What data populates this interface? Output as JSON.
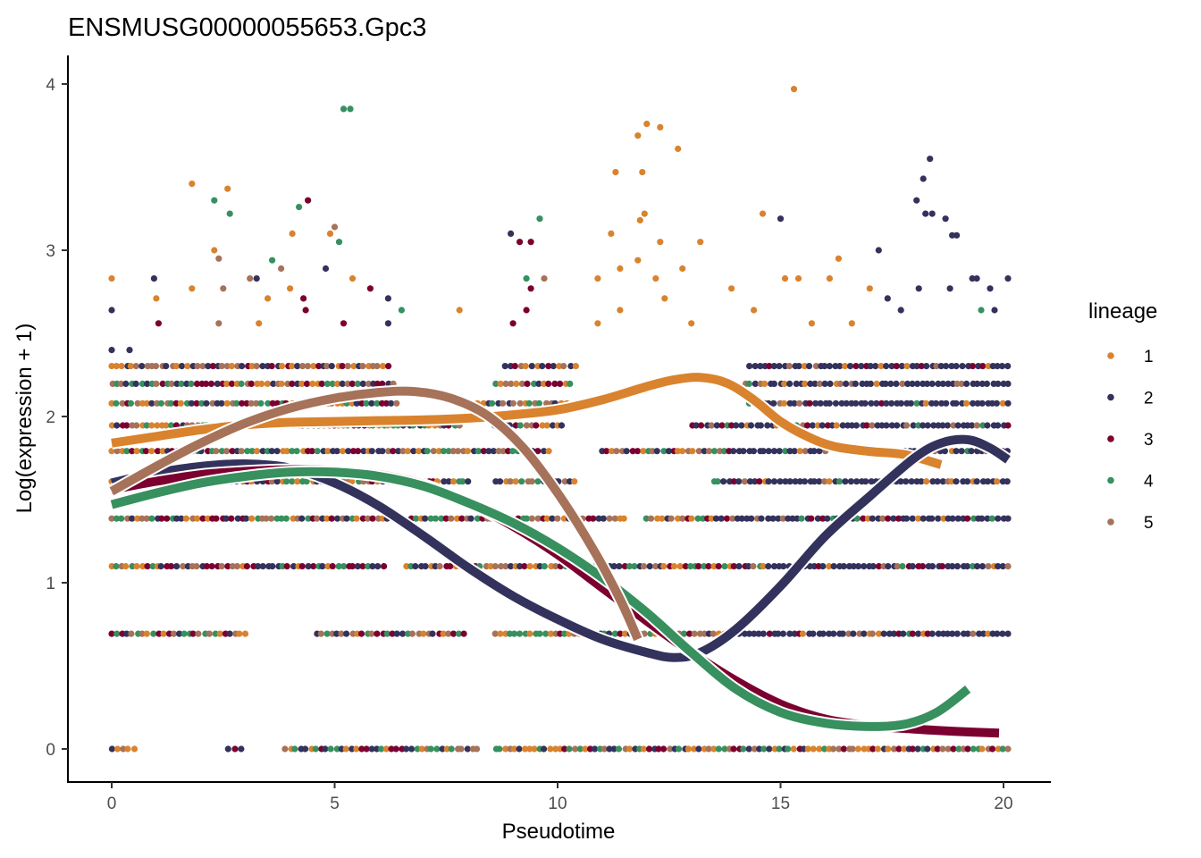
{
  "chart_data": {
    "type": "scatter",
    "title": "ENSMUSG00000055653.Gpc3",
    "xlabel": "Pseudotime",
    "ylabel": "Log(expression + 1)",
    "xlim": [
      -1.95,
      21.05
    ],
    "ylim": [
      -0.2,
      4.17
    ],
    "xticks": [
      0,
      5,
      10,
      15,
      20
    ],
    "yticks": [
      0,
      1,
      2,
      3,
      4
    ],
    "grid": false,
    "legend": {
      "title": "lineage",
      "position": "right",
      "entries": [
        {
          "label": "1",
          "color": "#D9832E"
        },
        {
          "label": "2",
          "color": "#33325C"
        },
        {
          "label": "3",
          "color": "#7B0030"
        },
        {
          "label": "4",
          "color": "#37905E"
        },
        {
          "label": "5",
          "color": "#A6725A"
        }
      ]
    },
    "series": [
      {
        "name": "1",
        "color": "#D9832E",
        "curve": [
          [
            0,
            1.84
          ],
          [
            1,
            1.88
          ],
          [
            2,
            1.92
          ],
          [
            3,
            1.95
          ],
          [
            4,
            1.965
          ],
          [
            5,
            1.97
          ],
          [
            6,
            1.975
          ],
          [
            7,
            1.98
          ],
          [
            8,
            1.99
          ],
          [
            9,
            2.01
          ],
          [
            10,
            2.04
          ],
          [
            11,
            2.1
          ],
          [
            12,
            2.18
          ],
          [
            12.6,
            2.22
          ],
          [
            13.2,
            2.235
          ],
          [
            13.8,
            2.2
          ],
          [
            14.4,
            2.1
          ],
          [
            15,
            1.97
          ],
          [
            15.6,
            1.88
          ],
          [
            16.2,
            1.82
          ],
          [
            17,
            1.79
          ],
          [
            17.8,
            1.77
          ],
          [
            18.6,
            1.71
          ]
        ]
      },
      {
        "name": "2",
        "color": "#33325C",
        "curve": [
          [
            0,
            1.6
          ],
          [
            1,
            1.66
          ],
          [
            2,
            1.7
          ],
          [
            3,
            1.715
          ],
          [
            4,
            1.69
          ],
          [
            5,
            1.6
          ],
          [
            6,
            1.46
          ],
          [
            7,
            1.28
          ],
          [
            8,
            1.09
          ],
          [
            9,
            0.92
          ],
          [
            10,
            0.78
          ],
          [
            11,
            0.66
          ],
          [
            12,
            0.58
          ],
          [
            12.6,
            0.55
          ],
          [
            13.2,
            0.58
          ],
          [
            14,
            0.72
          ],
          [
            15,
            0.98
          ],
          [
            16,
            1.28
          ],
          [
            17,
            1.52
          ],
          [
            18,
            1.75
          ],
          [
            18.6,
            1.84
          ],
          [
            19.2,
            1.86
          ],
          [
            19.7,
            1.81
          ],
          [
            20.1,
            1.74
          ]
        ]
      },
      {
        "name": "3",
        "color": "#7B0030",
        "curve": [
          [
            0,
            1.56
          ],
          [
            1,
            1.61
          ],
          [
            2,
            1.65
          ],
          [
            3,
            1.67
          ],
          [
            4,
            1.68
          ],
          [
            5,
            1.675
          ],
          [
            6,
            1.65
          ],
          [
            7,
            1.59
          ],
          [
            8,
            1.48
          ],
          [
            9,
            1.34
          ],
          [
            10,
            1.17
          ],
          [
            11,
            0.97
          ],
          [
            12,
            0.77
          ],
          [
            13,
            0.58
          ],
          [
            14,
            0.41
          ],
          [
            15,
            0.27
          ],
          [
            16,
            0.18
          ],
          [
            17,
            0.14
          ],
          [
            18,
            0.12
          ],
          [
            19,
            0.105
          ],
          [
            19.9,
            0.095
          ]
        ]
      },
      {
        "name": "4",
        "color": "#37905E",
        "curve": [
          [
            0,
            1.47
          ],
          [
            1,
            1.54
          ],
          [
            2,
            1.6
          ],
          [
            3,
            1.64
          ],
          [
            4,
            1.665
          ],
          [
            5,
            1.665
          ],
          [
            6,
            1.64
          ],
          [
            7,
            1.58
          ],
          [
            8,
            1.48
          ],
          [
            9,
            1.36
          ],
          [
            10,
            1.21
          ],
          [
            11,
            1.03
          ],
          [
            12,
            0.82
          ],
          [
            13,
            0.58
          ],
          [
            14,
            0.36
          ],
          [
            15,
            0.22
          ],
          [
            16,
            0.155
          ],
          [
            17,
            0.135
          ],
          [
            17.8,
            0.15
          ],
          [
            18.5,
            0.22
          ],
          [
            19.2,
            0.36
          ]
        ]
      },
      {
        "name": "5",
        "color": "#A6725A",
        "curve": [
          [
            0,
            1.55
          ],
          [
            1,
            1.7
          ],
          [
            2,
            1.84
          ],
          [
            3,
            1.96
          ],
          [
            4,
            2.05
          ],
          [
            5,
            2.11
          ],
          [
            6,
            2.145
          ],
          [
            6.8,
            2.15
          ],
          [
            7.6,
            2.11
          ],
          [
            8.4,
            2.01
          ],
          [
            9.2,
            1.82
          ],
          [
            10,
            1.54
          ],
          [
            10.8,
            1.2
          ],
          [
            11.4,
            0.9
          ],
          [
            11.8,
            0.66
          ]
        ]
      }
    ],
    "scatter_levels": [
      0,
      0.693,
      1.099,
      1.386,
      1.609,
      1.792,
      1.946,
      2.079,
      2.197,
      2.303,
      2.398,
      2.485,
      2.565,
      2.639,
      2.708,
      2.773,
      2.833,
      2.89,
      2.944,
      3.045,
      3.091,
      3.219,
      3.296,
      3.401,
      3.466,
      3.555,
      3.611,
      3.689,
      3.738,
      3.761,
      3.85,
      3.97
    ],
    "scatter_segments": [
      {
        "level": 0,
        "ranges": [
          [
            0,
            0.5
          ],
          [
            2.6,
            2.9
          ],
          [
            3.9,
            8.2
          ],
          [
            8.6,
            20.1
          ]
        ],
        "lineages": [
          "3",
          "2",
          "4",
          "5",
          "1"
        ]
      },
      {
        "level": 0.693,
        "ranges": [
          [
            0,
            3.0
          ],
          [
            4.6,
            7.9
          ],
          [
            8.6,
            20.1
          ]
        ],
        "lineages": [
          "5",
          "2",
          "4",
          "3",
          "1"
        ]
      },
      {
        "level": 1.099,
        "ranges": [
          [
            0,
            6.1
          ],
          [
            6.6,
            20.1
          ]
        ],
        "lineages": [
          "2",
          "5",
          "3",
          "4",
          "1"
        ]
      },
      {
        "level": 1.386,
        "ranges": [
          [
            0,
            6.3
          ],
          [
            6.7,
            11.5
          ],
          [
            12,
            20.1
          ]
        ],
        "lineages": [
          "5",
          "3",
          "2",
          "4",
          "1"
        ]
      },
      {
        "level": 1.609,
        "ranges": [
          [
            0,
            8.0
          ],
          [
            8.6,
            10.4
          ],
          [
            13.5,
            20.1
          ]
        ],
        "lineages": [
          "2",
          "3",
          "4",
          "5",
          "1"
        ]
      },
      {
        "level": 1.792,
        "ranges": [
          [
            0,
            9.8
          ],
          [
            11,
            16
          ],
          [
            16.5,
            20.1
          ]
        ],
        "lineages": [
          "2",
          "3",
          "4",
          "5",
          "1"
        ]
      },
      {
        "level": 1.946,
        "ranges": [
          [
            0,
            7.8
          ],
          [
            8.6,
            10.1
          ],
          [
            13,
            20.1
          ]
        ],
        "lineages": [
          "2",
          "1",
          "3",
          "5",
          "4"
        ]
      },
      {
        "level": 2.079,
        "ranges": [
          [
            0,
            6.4
          ],
          [
            8.2,
            10.2
          ],
          [
            14.3,
            20.1
          ]
        ],
        "lineages": [
          "1",
          "2",
          "3",
          "4",
          "5"
        ]
      },
      {
        "level": 2.197,
        "ranges": [
          [
            0,
            6.3
          ],
          [
            8.6,
            10.3
          ],
          [
            14.2,
            20.1
          ]
        ],
        "lineages": [
          "1",
          "5",
          "2",
          "3",
          "4"
        ]
      },
      {
        "level": 2.303,
        "ranges": [
          [
            0,
            6.2
          ],
          [
            8.8,
            10.4
          ],
          [
            14.3,
            20.1
          ]
        ],
        "lineages": [
          "1",
          "5",
          "2",
          "3"
        ]
      }
    ],
    "sparse_points": [
      {
        "x": 5.2,
        "y": 3.85,
        "lineage": "4"
      },
      {
        "x": 5.35,
        "y": 3.85,
        "lineage": "4"
      },
      {
        "x": 15.3,
        "y": 3.97,
        "lineage": "1"
      },
      {
        "x": 11.8,
        "y": 3.69,
        "lineage": "1"
      },
      {
        "x": 12.0,
        "y": 3.76,
        "lineage": "1"
      },
      {
        "x": 12.3,
        "y": 3.74,
        "lineage": "1"
      },
      {
        "x": 12.7,
        "y": 3.61,
        "lineage": "1"
      },
      {
        "x": 11.3,
        "y": 3.47,
        "lineage": "1"
      },
      {
        "x": 11.9,
        "y": 3.47,
        "lineage": "1"
      },
      {
        "x": 11.95,
        "y": 3.22,
        "lineage": "1"
      },
      {
        "x": 11.85,
        "y": 3.18,
        "lineage": "1"
      },
      {
        "x": 1.8,
        "y": 3.4,
        "lineage": "1"
      },
      {
        "x": 2.6,
        "y": 3.37,
        "lineage": "1"
      },
      {
        "x": 2.3,
        "y": 3.3,
        "lineage": "4"
      },
      {
        "x": 2.65,
        "y": 3.22,
        "lineage": "4"
      },
      {
        "x": 4.2,
        "y": 3.26,
        "lineage": "4"
      },
      {
        "x": 4.4,
        "y": 3.3,
        "lineage": "3"
      },
      {
        "x": 5.0,
        "y": 3.14,
        "lineage": "5"
      },
      {
        "x": 5.1,
        "y": 3.05,
        "lineage": "4"
      },
      {
        "x": 4.9,
        "y": 3.1,
        "lineage": "1"
      },
      {
        "x": 4.05,
        "y": 3.1,
        "lineage": "1"
      },
      {
        "x": 2.3,
        "y": 3.0,
        "lineage": "1"
      },
      {
        "x": 2.4,
        "y": 2.95,
        "lineage": "5"
      },
      {
        "x": 3.6,
        "y": 2.94,
        "lineage": "4"
      },
      {
        "x": 3.8,
        "y": 2.89,
        "lineage": "5"
      },
      {
        "x": 4.8,
        "y": 2.89,
        "lineage": "2"
      },
      {
        "x": 9.6,
        "y": 3.19,
        "lineage": "4"
      },
      {
        "x": 8.95,
        "y": 3.1,
        "lineage": "2"
      },
      {
        "x": 9.15,
        "y": 3.05,
        "lineage": "3"
      },
      {
        "x": 9.4,
        "y": 3.05,
        "lineage": "3"
      },
      {
        "x": 11.2,
        "y": 3.1,
        "lineage": "1"
      },
      {
        "x": 12.3,
        "y": 3.05,
        "lineage": "1"
      },
      {
        "x": 13.2,
        "y": 3.05,
        "lineage": "1"
      },
      {
        "x": 14.6,
        "y": 3.22,
        "lineage": "1"
      },
      {
        "x": 15.0,
        "y": 3.19,
        "lineage": "2"
      },
      {
        "x": 16.3,
        "y": 2.95,
        "lineage": "1"
      },
      {
        "x": 17.2,
        "y": 3.0,
        "lineage": "2"
      },
      {
        "x": 18.05,
        "y": 3.3,
        "lineage": "2"
      },
      {
        "x": 18.2,
        "y": 3.43,
        "lineage": "2"
      },
      {
        "x": 18.35,
        "y": 3.55,
        "lineage": "2"
      },
      {
        "x": 18.25,
        "y": 3.22,
        "lineage": "2"
      },
      {
        "x": 18.4,
        "y": 3.22,
        "lineage": "2"
      },
      {
        "x": 18.7,
        "y": 3.19,
        "lineage": "2"
      },
      {
        "x": 18.85,
        "y": 3.09,
        "lineage": "2"
      },
      {
        "x": 18.95,
        "y": 3.09,
        "lineage": "2"
      },
      {
        "x": 0,
        "y": 2.83,
        "lineage": "1"
      },
      {
        "x": 0,
        "y": 2.64,
        "lineage": "2"
      },
      {
        "x": 0,
        "y": 2.4,
        "lineage": "2"
      },
      {
        "x": 0.4,
        "y": 2.4,
        "lineage": "2"
      },
      {
        "x": 1.0,
        "y": 2.71,
        "lineage": "1"
      },
      {
        "x": 0.95,
        "y": 2.83,
        "lineage": "2"
      },
      {
        "x": 1.05,
        "y": 2.56,
        "lineage": "3"
      },
      {
        "x": 1.8,
        "y": 2.77,
        "lineage": "1"
      },
      {
        "x": 2.5,
        "y": 2.77,
        "lineage": "5"
      },
      {
        "x": 3.1,
        "y": 2.83,
        "lineage": "5"
      },
      {
        "x": 3.25,
        "y": 2.83,
        "lineage": "2"
      },
      {
        "x": 3.5,
        "y": 2.71,
        "lineage": "1"
      },
      {
        "x": 4.0,
        "y": 2.77,
        "lineage": "1"
      },
      {
        "x": 4.3,
        "y": 2.71,
        "lineage": "3"
      },
      {
        "x": 4.35,
        "y": 2.64,
        "lineage": "3"
      },
      {
        "x": 5.4,
        "y": 2.83,
        "lineage": "1"
      },
      {
        "x": 5.8,
        "y": 2.77,
        "lineage": "3"
      },
      {
        "x": 6.2,
        "y": 2.71,
        "lineage": "2"
      },
      {
        "x": 6.5,
        "y": 2.64,
        "lineage": "4"
      },
      {
        "x": 7.8,
        "y": 2.64,
        "lineage": "1"
      },
      {
        "x": 9.3,
        "y": 2.83,
        "lineage": "4"
      },
      {
        "x": 9.4,
        "y": 2.77,
        "lineage": "3"
      },
      {
        "x": 9.7,
        "y": 2.83,
        "lineage": "5"
      },
      {
        "x": 10.9,
        "y": 2.83,
        "lineage": "1"
      },
      {
        "x": 11.4,
        "y": 2.89,
        "lineage": "1"
      },
      {
        "x": 11.8,
        "y": 2.94,
        "lineage": "1"
      },
      {
        "x": 12.2,
        "y": 2.83,
        "lineage": "1"
      },
      {
        "x": 12.4,
        "y": 2.71,
        "lineage": "1"
      },
      {
        "x": 12.8,
        "y": 2.89,
        "lineage": "1"
      },
      {
        "x": 13.9,
        "y": 2.77,
        "lineage": "1"
      },
      {
        "x": 15.1,
        "y": 2.83,
        "lineage": "1"
      },
      {
        "x": 15.4,
        "y": 2.83,
        "lineage": "1"
      },
      {
        "x": 16.1,
        "y": 2.83,
        "lineage": "1"
      },
      {
        "x": 17.0,
        "y": 2.77,
        "lineage": "1"
      },
      {
        "x": 17.4,
        "y": 2.71,
        "lineage": "2"
      },
      {
        "x": 18.1,
        "y": 2.77,
        "lineage": "2"
      },
      {
        "x": 18.8,
        "y": 2.77,
        "lineage": "2"
      },
      {
        "x": 19.3,
        "y": 2.83,
        "lineage": "2"
      },
      {
        "x": 19.4,
        "y": 2.83,
        "lineage": "2"
      },
      {
        "x": 19.5,
        "y": 2.64,
        "lineage": "4"
      },
      {
        "x": 19.7,
        "y": 2.77,
        "lineage": "2"
      },
      {
        "x": 20.1,
        "y": 2.83,
        "lineage": "2"
      },
      {
        "x": 19.8,
        "y": 2.64,
        "lineage": "2"
      },
      {
        "x": 17.7,
        "y": 2.64,
        "lineage": "2"
      },
      {
        "x": 16.6,
        "y": 2.56,
        "lineage": "1"
      },
      {
        "x": 15.7,
        "y": 2.56,
        "lineage": "1"
      },
      {
        "x": 14.4,
        "y": 2.64,
        "lineage": "1"
      },
      {
        "x": 13.0,
        "y": 2.56,
        "lineage": "1"
      },
      {
        "x": 11.4,
        "y": 2.64,
        "lineage": "1"
      },
      {
        "x": 10.9,
        "y": 2.56,
        "lineage": "1"
      },
      {
        "x": 9.0,
        "y": 2.56,
        "lineage": "3"
      },
      {
        "x": 9.3,
        "y": 2.64,
        "lineage": "3"
      },
      {
        "x": 6.2,
        "y": 2.56,
        "lineage": "2"
      },
      {
        "x": 5.2,
        "y": 2.56,
        "lineage": "3"
      },
      {
        "x": 3.3,
        "y": 2.56,
        "lineage": "1"
      },
      {
        "x": 2.4,
        "y": 2.56,
        "lineage": "5"
      }
    ]
  }
}
